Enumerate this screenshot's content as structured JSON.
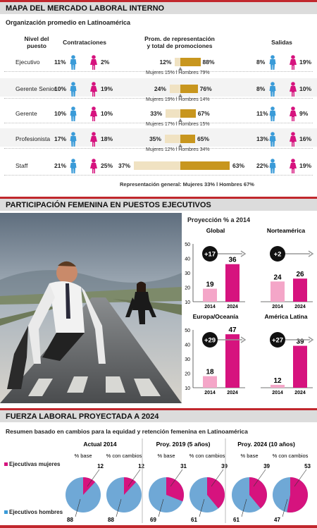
{
  "section1": {
    "title": "MAPA DEL MERCADO LABORAL INTERNO",
    "subtitle": "Organización promedio en Latinoamérica",
    "col_nivel": [
      "Nivel del",
      "puesto"
    ],
    "col_contrat": "Contrataciones",
    "col_prom": [
      "Prom. de representación",
      "y total de promociones"
    ],
    "col_salidas": "Salidas",
    "footer": "Representación general: Mujeres 33% l Hombres 67%"
  },
  "chart_data": [
    {
      "type": "table",
      "title": "MAPA DEL MERCADO LABORAL INTERNO",
      "rows": [
        {
          "level": "Ejecutivo",
          "hire_men": "11%",
          "hire_women": "2%",
          "rep_women": "12%",
          "rep_men": "88%",
          "promo": "Mujeres 15% l Hombres 79%",
          "exit_men": "8%",
          "exit_women": "19%",
          "w": 12
        },
        {
          "level": "Gerente Senior",
          "hire_men": "10%",
          "hire_women": "19%",
          "rep_women": "24%",
          "rep_men": "76%",
          "promo": "Mujeres 19% l Hombres 14%",
          "exit_men": "8%",
          "exit_women": "10%",
          "w": 24
        },
        {
          "level": "Gerente",
          "hire_men": "10%",
          "hire_women": "10%",
          "rep_women": "33%",
          "rep_men": "67%",
          "promo": "Mujeres 17% l Hombres 15%",
          "exit_men": "11%",
          "exit_women": "9%",
          "w": 33
        },
        {
          "level": "Profesionista",
          "hire_men": "17%",
          "hire_women": "18%",
          "rep_women": "35%",
          "rep_men": "65%",
          "promo": "Mujeres 12% l Hombres 34%",
          "exit_men": "13%",
          "exit_women": "16%",
          "w": 35
        },
        {
          "level": "Staff",
          "hire_men": "21%",
          "hire_women": "25%",
          "rep_women": "37%",
          "rep_men": "63%",
          "promo": "",
          "exit_men": "22%",
          "exit_women": "19%",
          "w": 37
        }
      ]
    },
    {
      "type": "bar",
      "title": "Global",
      "categories": [
        "2014",
        "2024"
      ],
      "values": [
        19,
        36
      ],
      "delta": "+17",
      "ylim": [
        10,
        50
      ]
    },
    {
      "type": "bar",
      "title": "Norteamérica",
      "categories": [
        "2014",
        "2024"
      ],
      "values": [
        24,
        26
      ],
      "delta": "+2",
      "ylim": [
        10,
        50
      ]
    },
    {
      "type": "bar",
      "title": "Europa/Oceanía",
      "categories": [
        "2014",
        "2024"
      ],
      "values": [
        18,
        47
      ],
      "delta": "+29",
      "ylim": [
        10,
        50
      ]
    },
    {
      "type": "bar",
      "title": "América Latina",
      "categories": [
        "2014",
        "2024"
      ],
      "values": [
        12,
        39
      ],
      "delta": "+27",
      "ylim": [
        10,
        50
      ]
    },
    {
      "type": "pie",
      "title": "Actual 2014",
      "pies": [
        {
          "label": "% base",
          "women": 12,
          "men": 88
        },
        {
          "label": "% con cambios",
          "women": 12,
          "men": 88
        }
      ]
    },
    {
      "type": "pie",
      "title": "Proy. 2019 (5 años)",
      "pies": [
        {
          "label": "% base",
          "women": 31,
          "men": 69
        },
        {
          "label": "% con cambios",
          "women": 39,
          "men": 61
        }
      ]
    },
    {
      "type": "pie",
      "title": "Proy. 2024 (10 años)",
      "pies": [
        {
          "label": "% base",
          "women": 39,
          "men": 61
        },
        {
          "label": "% con cambios",
          "women": 53,
          "men": 47
        }
      ]
    }
  ],
  "section2": {
    "title": "PARTICIPACIÓN FEMENINA EN PUESTOS EJECUTIVOS",
    "proj_title": "Proyección % a 2014",
    "yticks": [
      10,
      20,
      30,
      40,
      50
    ]
  },
  "section3": {
    "title": "FUERZA LABORAL PROYECTADA A 2024",
    "subtitle": "Resumen basado en cambios para la equidad y retención femenina en Latinoamérica",
    "legend_women": "Ejecutivas mujeres",
    "legend_men": "Ejecutivos hombres"
  },
  "colors": {
    "accent_red": "#c1272d",
    "women_pink": "#d6137e",
    "men_blue": "#3a9bd8",
    "gold": "#c8961e",
    "beige": "#f0e2c2",
    "pink_light": "#f4a6c8",
    "pie_blue": "#6fa8d6"
  }
}
